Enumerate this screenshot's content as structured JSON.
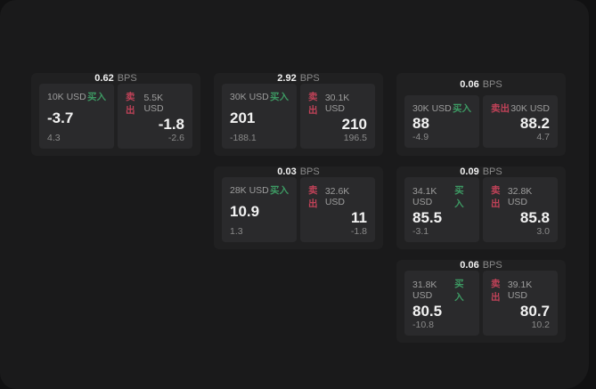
{
  "page": {
    "bps_unit": "BPS",
    "buy_label": "买入",
    "sell_label": "卖出",
    "colors": {
      "backdrop": "#111112",
      "window_bg": "#1a1a1b",
      "card_bg": "#202021",
      "panel_bg": "#2a2a2c",
      "buy_green": "#3d9963",
      "sell_red": "#c04258",
      "text_bright": "#f2f2f2",
      "text_gray": "#9d9d9d",
      "text_dim": "#8a8a8a"
    }
  },
  "cards": [
    {
      "bps": "0.62",
      "buy": {
        "amount": "10K USD",
        "value": "-3.7",
        "sub": "4.3"
      },
      "sell": {
        "amount": "5.5K USD",
        "value": "-1.8",
        "sub": "-2.6"
      }
    },
    {
      "bps": "2.92",
      "buy": {
        "amount": "30K USD",
        "value": "201",
        "sub": "-188.1"
      },
      "sell": {
        "amount": "30.1K USD",
        "value": "210",
        "sub": "196.5"
      }
    },
    {
      "bps": "0.06",
      "buy": {
        "amount": "30K USD",
        "value": "88",
        "sub": "-4.9"
      },
      "sell": {
        "amount": "30K USD",
        "value": "88.2",
        "sub": "4.7"
      }
    },
    {
      "bps": "0.03",
      "buy": {
        "amount": "28K USD",
        "value": "10.9",
        "sub": "1.3"
      },
      "sell": {
        "amount": "32.6K USD",
        "value": "11",
        "sub": "-1.8"
      }
    },
    {
      "bps": "0.09",
      "buy": {
        "amount": "34.1K USD",
        "value": "85.5",
        "sub": "-3.1"
      },
      "sell": {
        "amount": "32.8K USD",
        "value": "85.8",
        "sub": "3.0"
      }
    },
    {
      "bps": "0.06",
      "buy": {
        "amount": "31.8K USD",
        "value": "80.5",
        "sub": "-10.8"
      },
      "sell": {
        "amount": "39.1K USD",
        "value": "80.7",
        "sub": "10.2"
      }
    }
  ]
}
